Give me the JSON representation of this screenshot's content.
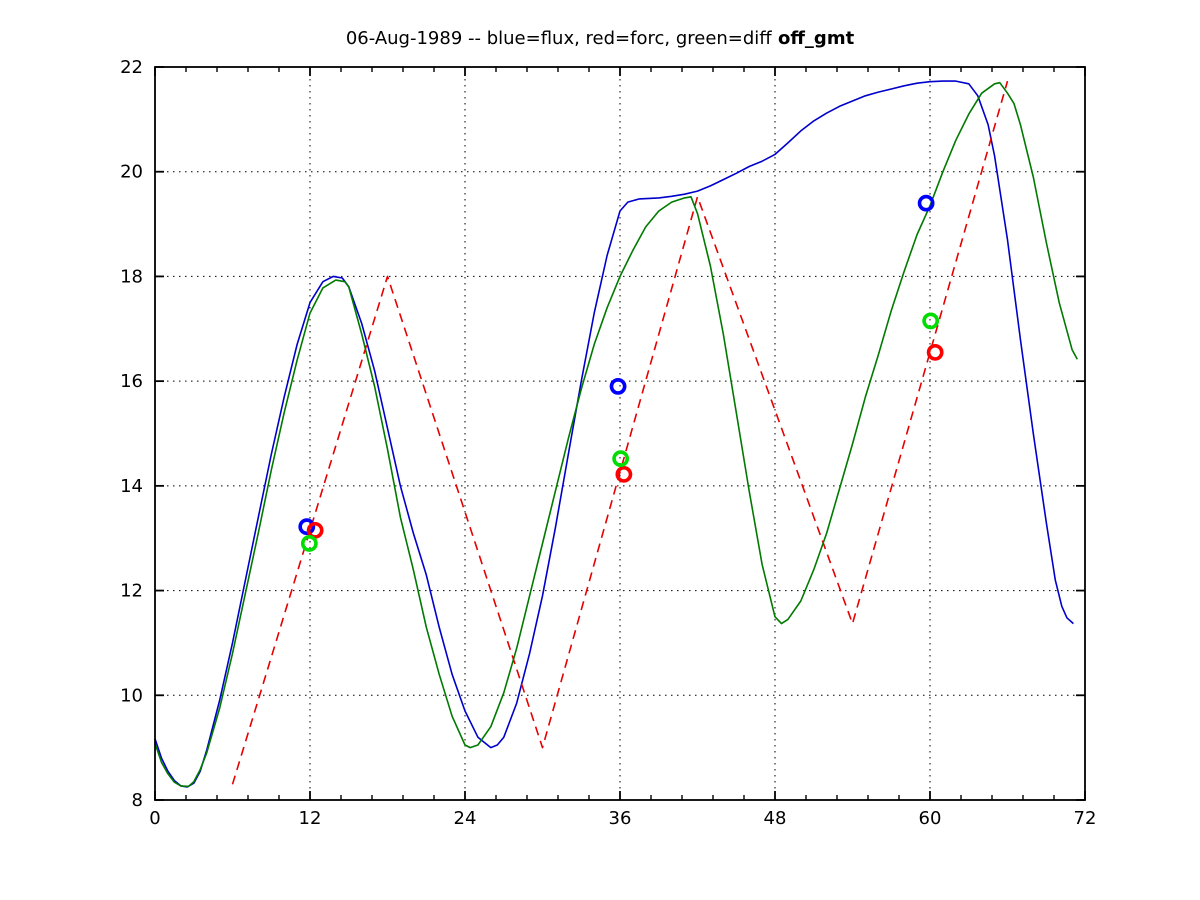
{
  "chart_data": {
    "type": "line",
    "title": "06-Aug-1989 -- blue=flux, red=forc, green=diff",
    "title_bold_suffix": " off_gmt",
    "xlim": [
      0,
      72
    ],
    "ylim": [
      8,
      22
    ],
    "xticks": [
      0,
      12,
      24,
      36,
      48,
      60,
      72
    ],
    "yticks": [
      8,
      10,
      12,
      14,
      16,
      18,
      20,
      22
    ],
    "x_minor_step": 2.4,
    "grid": true,
    "axis_color": "#000000",
    "grid_style": "dotted",
    "series": [
      {
        "name": "flux",
        "legend": "blue=flux",
        "color": "#0000cc",
        "style": "solid",
        "points": [
          [
            0,
            9.17
          ],
          [
            0.5,
            8.8
          ],
          [
            1,
            8.55
          ],
          [
            1.5,
            8.37
          ],
          [
            2,
            8.27
          ],
          [
            2.5,
            8.25
          ],
          [
            3,
            8.32
          ],
          [
            3.5,
            8.55
          ],
          [
            4,
            8.95
          ],
          [
            5,
            9.9
          ],
          [
            6,
            11.0
          ],
          [
            7,
            12.2
          ],
          [
            8,
            13.4
          ],
          [
            9,
            14.6
          ],
          [
            10,
            15.7
          ],
          [
            11,
            16.7
          ],
          [
            12,
            17.5
          ],
          [
            13,
            17.9
          ],
          [
            13.8,
            18.0
          ],
          [
            14.5,
            17.97
          ],
          [
            15,
            17.8
          ],
          [
            16,
            17.1
          ],
          [
            17,
            16.2
          ],
          [
            18,
            15.1
          ],
          [
            19,
            14.0
          ],
          [
            20,
            13.1
          ],
          [
            21,
            12.3
          ],
          [
            22,
            11.3
          ],
          [
            23,
            10.4
          ],
          [
            24,
            9.7
          ],
          [
            25,
            9.2
          ],
          [
            26,
            9.0
          ],
          [
            26.5,
            9.05
          ],
          [
            27,
            9.2
          ],
          [
            28,
            9.85
          ],
          [
            29,
            10.8
          ],
          [
            30,
            11.9
          ],
          [
            31,
            13.2
          ],
          [
            32,
            14.6
          ],
          [
            33,
            16.0
          ],
          [
            34,
            17.3
          ],
          [
            35,
            18.4
          ],
          [
            36,
            19.25
          ],
          [
            36.6,
            19.42
          ],
          [
            37.5,
            19.48
          ],
          [
            39,
            19.5
          ],
          [
            40,
            19.53
          ],
          [
            41,
            19.57
          ],
          [
            42,
            19.63
          ],
          [
            43,
            19.73
          ],
          [
            44,
            19.85
          ],
          [
            45,
            19.97
          ],
          [
            46,
            20.1
          ],
          [
            47,
            20.2
          ],
          [
            48,
            20.33
          ],
          [
            49,
            20.55
          ],
          [
            50,
            20.78
          ],
          [
            51,
            20.97
          ],
          [
            52,
            21.12
          ],
          [
            53,
            21.25
          ],
          [
            54,
            21.35
          ],
          [
            55,
            21.45
          ],
          [
            56,
            21.52
          ],
          [
            57,
            21.58
          ],
          [
            58,
            21.64
          ],
          [
            59,
            21.69
          ],
          [
            60,
            21.72
          ],
          [
            61,
            21.73
          ],
          [
            62,
            21.73
          ],
          [
            63,
            21.68
          ],
          [
            63.7,
            21.45
          ],
          [
            64.5,
            20.9
          ],
          [
            65,
            20.3
          ],
          [
            66,
            18.7
          ],
          [
            67,
            16.8
          ],
          [
            68,
            15.0
          ],
          [
            69,
            13.3
          ],
          [
            69.7,
            12.2
          ],
          [
            70.2,
            11.7
          ],
          [
            70.6,
            11.48
          ],
          [
            71.1,
            11.37
          ]
        ]
      },
      {
        "name": "forc",
        "legend": "red=forc",
        "color": "#e60000",
        "style": "dashed",
        "points": [
          [
            6,
            8.3
          ],
          [
            18,
            18.0
          ],
          [
            30,
            9.0
          ],
          [
            42,
            19.52
          ],
          [
            54,
            11.37
          ],
          [
            66,
            21.73
          ]
        ]
      },
      {
        "name": "diff",
        "legend": "green=diff",
        "color": "#007a00",
        "style": "solid",
        "points": [
          [
            0,
            9.08
          ],
          [
            0.5,
            8.72
          ],
          [
            1,
            8.5
          ],
          [
            1.5,
            8.34
          ],
          [
            2,
            8.27
          ],
          [
            2.6,
            8.26
          ],
          [
            3,
            8.35
          ],
          [
            3.5,
            8.58
          ],
          [
            4,
            8.9
          ],
          [
            5,
            9.75
          ],
          [
            6,
            10.8
          ],
          [
            7,
            11.95
          ],
          [
            8,
            13.1
          ],
          [
            9,
            14.3
          ],
          [
            10,
            15.4
          ],
          [
            11,
            16.4
          ],
          [
            12,
            17.3
          ],
          [
            13,
            17.78
          ],
          [
            14,
            17.93
          ],
          [
            14.7,
            17.9
          ],
          [
            15,
            17.8
          ],
          [
            16,
            16.9
          ],
          [
            17,
            15.9
          ],
          [
            18,
            14.7
          ],
          [
            19,
            13.4
          ],
          [
            20,
            12.4
          ],
          [
            21,
            11.3
          ],
          [
            22,
            10.4
          ],
          [
            23,
            9.6
          ],
          [
            24,
            9.05
          ],
          [
            24.4,
            9.0
          ],
          [
            25,
            9.05
          ],
          [
            26,
            9.4
          ],
          [
            27,
            10.05
          ],
          [
            28,
            10.9
          ],
          [
            29,
            11.9
          ],
          [
            30,
            12.9
          ],
          [
            31,
            13.9
          ],
          [
            32,
            14.9
          ],
          [
            33,
            15.85
          ],
          [
            34,
            16.7
          ],
          [
            35,
            17.4
          ],
          [
            36,
            18.0
          ],
          [
            37,
            18.5
          ],
          [
            38,
            18.95
          ],
          [
            39,
            19.25
          ],
          [
            40,
            19.42
          ],
          [
            41,
            19.5
          ],
          [
            41.5,
            19.52
          ],
          [
            42,
            19.2
          ],
          [
            43,
            18.2
          ],
          [
            44,
            16.9
          ],
          [
            45,
            15.4
          ],
          [
            46,
            13.9
          ],
          [
            47,
            12.5
          ],
          [
            48,
            11.5
          ],
          [
            48.5,
            11.37
          ],
          [
            49,
            11.45
          ],
          [
            50,
            11.8
          ],
          [
            51,
            12.4
          ],
          [
            52,
            13.1
          ],
          [
            53,
            13.95
          ],
          [
            54,
            14.8
          ],
          [
            55,
            15.7
          ],
          [
            56,
            16.5
          ],
          [
            57,
            17.35
          ],
          [
            58,
            18.1
          ],
          [
            59,
            18.8
          ],
          [
            60,
            19.35
          ],
          [
            61,
            20.0
          ],
          [
            62,
            20.6
          ],
          [
            63,
            21.1
          ],
          [
            64,
            21.5
          ],
          [
            65,
            21.68
          ],
          [
            65.4,
            21.7
          ],
          [
            66,
            21.5
          ],
          [
            66.5,
            21.3
          ],
          [
            67,
            20.9
          ],
          [
            68,
            19.9
          ],
          [
            69,
            18.65
          ],
          [
            70,
            17.5
          ],
          [
            71,
            16.6
          ],
          [
            71.4,
            16.42
          ]
        ]
      }
    ],
    "markers": [
      {
        "name": "flux-markers",
        "color": "#0000ff",
        "shape": "circle",
        "points": [
          [
            11.75,
            13.22
          ],
          [
            35.85,
            15.9
          ],
          [
            59.7,
            19.4
          ]
        ]
      },
      {
        "name": "forc-markers",
        "color": "#ff0000",
        "shape": "circle",
        "points": [
          [
            12.4,
            13.15
          ],
          [
            36.3,
            14.22
          ],
          [
            60.4,
            16.55
          ]
        ]
      },
      {
        "name": "diff-markers",
        "color": "#00dd00",
        "shape": "circle",
        "points": [
          [
            11.95,
            12.9
          ],
          [
            36.05,
            14.52
          ],
          [
            60.05,
            17.15
          ]
        ]
      }
    ]
  }
}
